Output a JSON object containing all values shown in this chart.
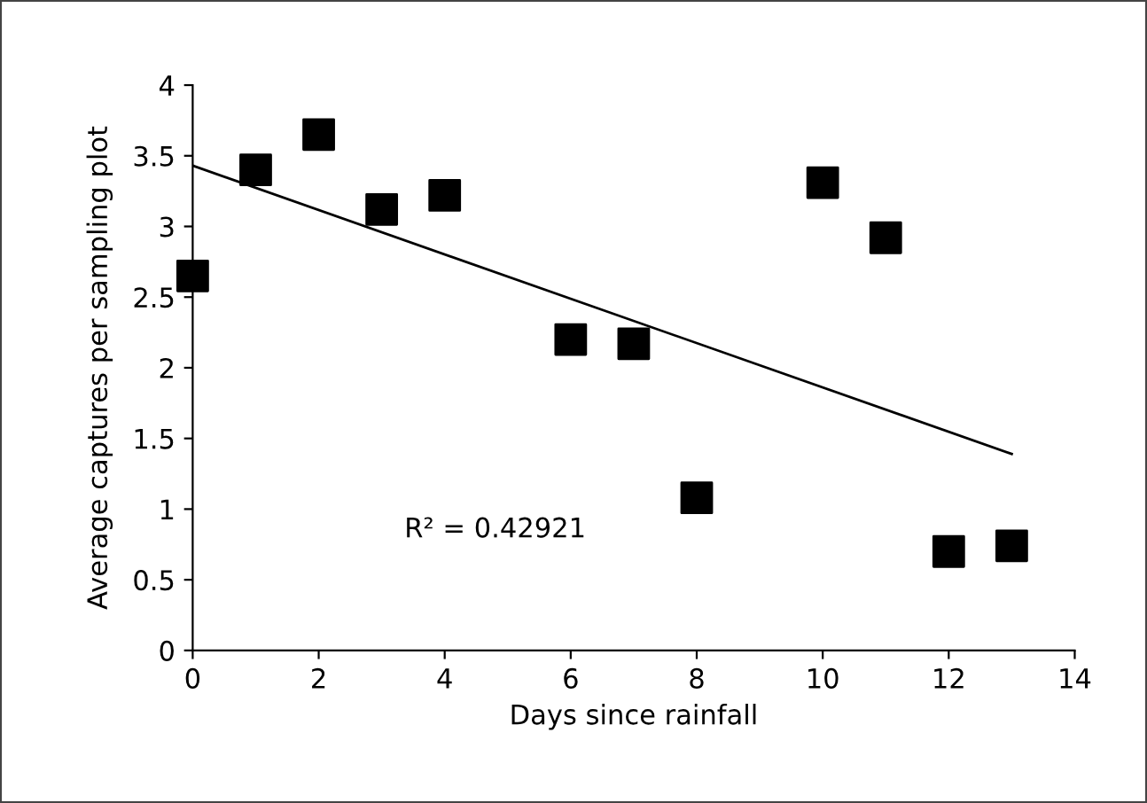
{
  "chart_data": {
    "type": "scatter",
    "xlabel": "Days since rainfall",
    "ylabel": "Average captures per sampling plot",
    "series": [
      {
        "color": "#000000",
        "marker": "square",
        "x": [
          0,
          1,
          2,
          3,
          4,
          6,
          7,
          8,
          10,
          11,
          12,
          13
        ],
        "values": [
          2.65,
          3.4,
          3.65,
          3.12,
          3.22,
          2.2,
          2.17,
          1.08,
          3.31,
          2.92,
          0.7,
          0.74
        ]
      },
      {
        "type": "line",
        "color": "#000000",
        "marker": "none",
        "x": [
          0,
          13
        ],
        "values": [
          3.43,
          1.39
        ]
      }
    ],
    "annotations": [
      "R² = 0.42921"
    ],
    "xlim": [
      0,
      14
    ],
    "xticks": [
      0,
      2,
      4,
      6,
      8,
      10,
      12,
      14
    ],
    "ylim": [
      0,
      4
    ],
    "yticks": [
      0,
      0.5,
      1,
      1.5,
      2,
      2.5,
      3,
      3.5,
      4
    ],
    "grid": false,
    "legend": false
  }
}
